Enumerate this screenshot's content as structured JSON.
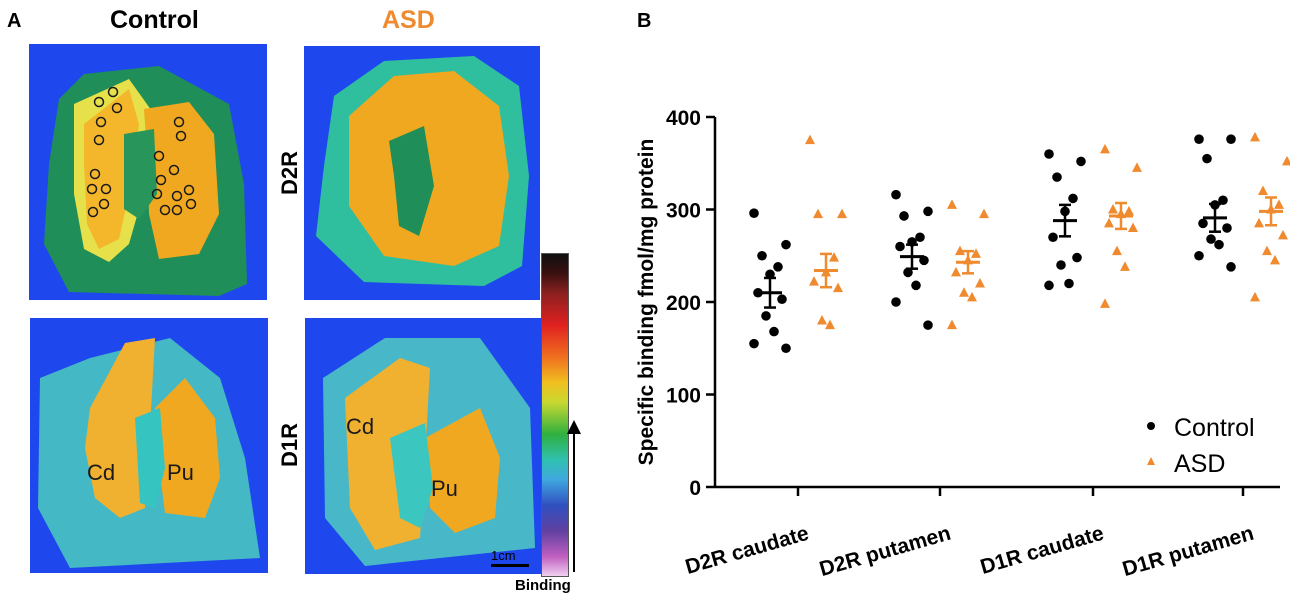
{
  "panel_a": {
    "letter": "A",
    "col_control": "Control",
    "col_asd": "ASD",
    "row_d2r": "D2R",
    "row_d1r": "D1R",
    "region_cd": "Cd",
    "region_pu": "Pu",
    "scale_bar": "1cm",
    "binding": "Binding",
    "colors": {
      "control": "#000000",
      "asd": "#ef8a2e",
      "background_scan": "#1e48ee",
      "tissue": "#2fc0b0",
      "striatum": "#f2a71e"
    }
  },
  "panel_b": {
    "letter": "B"
  },
  "chart_data": {
    "type": "scatter",
    "title": "",
    "ylabel": "Specific binding fmol/mg protein",
    "xlabel": "",
    "ylim": [
      0,
      400
    ],
    "yticks": [
      0,
      100,
      200,
      300,
      400
    ],
    "categories": [
      "D2R caudate",
      "D2R putamen",
      "D1R caudate",
      "D1R putamen"
    ],
    "legend": {
      "position": "bottom-right",
      "entries": [
        "Control",
        "ASD"
      ]
    },
    "series": [
      {
        "name": "Control",
        "marker": "circle",
        "color": "#000000",
        "points": [
          [
            296,
            262,
            250,
            238,
            230,
            210,
            203,
            185,
            168,
            155,
            150
          ],
          [
            316,
            298,
            293,
            270,
            265,
            260,
            245,
            232,
            218,
            200,
            175
          ],
          [
            360,
            352,
            335,
            312,
            298,
            270,
            248,
            240,
            220,
            218
          ],
          [
            376,
            376,
            355,
            310,
            305,
            285,
            280,
            268,
            262,
            250,
            238
          ]
        ],
        "mean": [
          210,
          249,
          288,
          291
        ],
        "sem": [
          16,
          13,
          17,
          15
        ]
      },
      {
        "name": "ASD",
        "marker": "triangle",
        "color": "#ef8a2e",
        "points": [
          [
            375,
            295,
            295,
            248,
            232,
            222,
            215,
            180,
            175
          ],
          [
            305,
            295,
            255,
            252,
            245,
            232,
            220,
            210,
            205,
            175
          ],
          [
            365,
            345,
            300,
            298,
            295,
            285,
            280,
            255,
            238,
            198
          ],
          [
            378,
            352,
            320,
            305,
            300,
            285,
            272,
            255,
            245,
            205
          ]
        ],
        "mean": [
          234,
          243,
          293,
          298
        ],
        "sem": [
          18,
          12,
          14,
          15
        ]
      }
    ]
  }
}
